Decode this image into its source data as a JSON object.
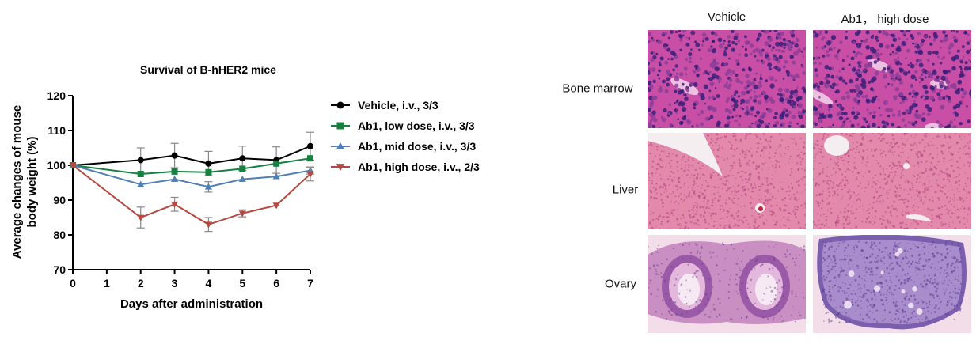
{
  "chart_data": {
    "type": "line",
    "title": "Survival of B-hHER2 mice",
    "xlabel": "Days after administration",
    "ylabel_lines": [
      "Average changes of mouse",
      "body weight (%)"
    ],
    "xlim": [
      0,
      7
    ],
    "ylim": [
      70,
      120
    ],
    "xticks": [
      0,
      1,
      2,
      3,
      4,
      5,
      6,
      7
    ],
    "yticks": [
      70,
      80,
      90,
      100,
      110,
      120
    ],
    "grid": false,
    "legend_position": "right",
    "series": [
      {
        "name": "Vehicle, i.v., 3/3",
        "color": "#000000",
        "marker": "circle",
        "x": [
          0,
          2,
          3,
          4,
          5,
          6,
          7
        ],
        "y": [
          100,
          101.5,
          102.8,
          100.5,
          102,
          101.5,
          105.5
        ],
        "err": [
          0,
          3.5,
          3.5,
          3.5,
          3.5,
          3.8,
          4
        ]
      },
      {
        "name": "Ab1, low dose, i.v., 3/3",
        "color": "#168040",
        "marker": "square",
        "x": [
          0,
          2,
          3,
          4,
          5,
          6,
          7
        ],
        "y": [
          100,
          97.5,
          98.2,
          98,
          99,
          100.5,
          102
        ],
        "err": [
          0,
          0,
          0,
          0,
          0,
          0,
          0
        ]
      },
      {
        "name": "Ab1, mid dose, i.v., 3/3",
        "color": "#4f7fb6",
        "marker": "triangle-up",
        "x": [
          0,
          2,
          3,
          4,
          5,
          6,
          7
        ],
        "y": [
          100,
          94.5,
          96,
          93.8,
          96,
          96.8,
          98.5
        ],
        "err": [
          0,
          0,
          0,
          1.5,
          0,
          0,
          1
        ]
      },
      {
        "name": "Ab1, high dose, i.v., 2/3",
        "color": "#b5483f",
        "marker": "triangle-down",
        "x": [
          0,
          2,
          3,
          4,
          5,
          6,
          7
        ],
        "y": [
          100,
          85,
          88.8,
          83,
          86.2,
          88.5,
          97.5
        ],
        "err": [
          0,
          3,
          2,
          2,
          1,
          0,
          2
        ]
      }
    ]
  },
  "histology": {
    "columns": [
      "Vehicle",
      "Ab1， high dose"
    ],
    "rows": [
      "Bone marrow",
      "Liver",
      "Ovary"
    ],
    "tissue_colors": {
      "bone_marrow_bg": "#c94fa6",
      "bone_marrow_nuclei": "#3b1f7a",
      "liver_bg": "#e38aac",
      "ovary_bg": "#f3dde9",
      "ovary_tissue": "#c98fc3",
      "ovary_dense": "#7b5fae"
    }
  }
}
